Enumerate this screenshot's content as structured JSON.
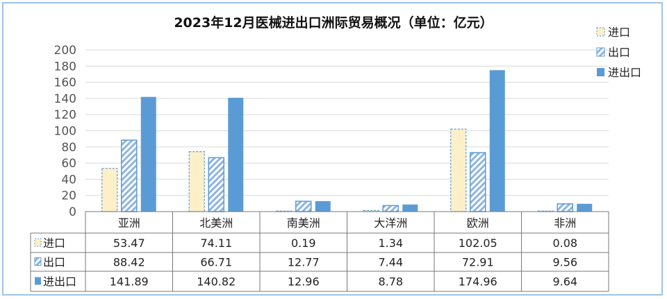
{
  "chart_data": {
    "type": "bar",
    "title": "2023年12月医械进出口洲际贸易概况（单位：亿元）",
    "categories": [
      "亚洲",
      "北美洲",
      "南美洲",
      "大洋洲",
      "欧洲",
      "非洲"
    ],
    "series": [
      {
        "name": "进口",
        "values": [
          53.47,
          74.11,
          0.19,
          1.34,
          102.05,
          0.08
        ],
        "color": "#fdf0c8",
        "stroke": "#5b9bd5",
        "style": "dashed-outline"
      },
      {
        "name": "出口",
        "values": [
          88.42,
          66.71,
          12.77,
          7.44,
          72.91,
          9.56
        ],
        "color": "#5b9bd5",
        "style": "hatched"
      },
      {
        "name": "进出口",
        "values": [
          141.89,
          140.82,
          12.96,
          8.78,
          174.96,
          9.64
        ],
        "color": "#5b9bd5",
        "style": "solid"
      }
    ],
    "ylim": [
      0,
      200
    ],
    "yticks": [
      0,
      20,
      40,
      60,
      80,
      100,
      120,
      140,
      160,
      180,
      200
    ],
    "grid": true,
    "legend": "top-right",
    "data_table": true
  }
}
